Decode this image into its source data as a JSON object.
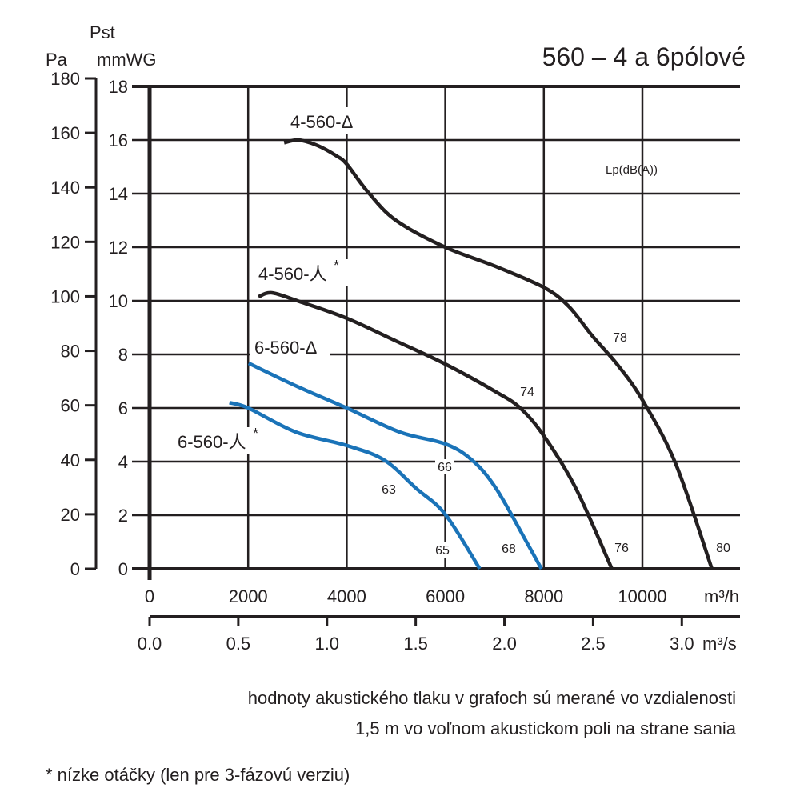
{
  "chart_data": {
    "type": "line",
    "title": "560 – 4 a 6pólové",
    "ylabel_top": "Pst",
    "ylabel_left": "Pa",
    "ylabel_right": "mmWG",
    "xlabel": "m³/h",
    "xlabel2": "m³/s",
    "xlim": [
      0,
      12000
    ],
    "ylim": [
      0,
      18
    ],
    "ylim_pa": [
      0,
      180
    ],
    "grid": true,
    "x_ticks": [
      0,
      2000,
      4000,
      6000,
      8000,
      10000
    ],
    "x_tick_labels": [
      "0",
      "2000",
      "4000",
      "6000",
      "8000",
      "10000"
    ],
    "x2_ticks": [
      0,
      0.5,
      1.0,
      1.5,
      2.0,
      2.5,
      3.0
    ],
    "x2_tick_labels": [
      "0.0",
      "0.5",
      "1.0",
      "1.5",
      "2.0",
      "2.5",
      "3.0"
    ],
    "y_ticks": [
      0,
      2,
      4,
      6,
      8,
      10,
      12,
      14,
      16,
      18
    ],
    "y_tick_labels": [
      "0",
      "2",
      "4",
      "6",
      "8",
      "10",
      "12",
      "14",
      "16",
      "18"
    ],
    "pa_ticks": [
      0,
      20,
      40,
      60,
      80,
      100,
      120,
      140,
      160,
      180
    ],
    "pa_tick_labels": [
      "0",
      "20",
      "40",
      "60",
      "80",
      "100",
      "120",
      "140",
      "160",
      "180"
    ],
    "lp_label": "Lp(dB(A))",
    "series": [
      {
        "name": "4-560-Δ",
        "label_main": "4-560-Δ",
        "label_sup": "",
        "color": "#231f20",
        "x": [
          2730,
          3020,
          3400,
          3800,
          4000,
          4430,
          5000,
          6000,
          7000,
          8000,
          8500,
          8980,
          9500,
          10000,
          10680,
          11410
        ],
        "y": [
          15.9,
          16.0,
          15.8,
          15.4,
          15.1,
          14.06,
          13.0,
          12.0,
          11.3,
          10.5,
          9.8,
          8.7,
          7.6,
          6.3,
          3.9,
          0
        ]
      },
      {
        "name": "4-560-人*",
        "label_main": "4-560-人",
        "label_sup": "*",
        "color": "#231f20",
        "x": [
          2210,
          2480,
          3000,
          4000,
          5000,
          6000,
          7030,
          7520,
          8000,
          8650,
          9380
        ],
        "y": [
          10.15,
          10.3,
          10.0,
          9.35,
          8.5,
          7.64,
          6.6,
          6.0,
          4.96,
          3.0,
          0
        ]
      },
      {
        "name": "6-560-Δ",
        "label_main": "6-560-Δ",
        "label_sup": "",
        "color": "#1a73b8",
        "x": [
          2010,
          3000,
          4000,
          5080,
          6000,
          6540,
          7030,
          7680,
          7950
        ],
        "y": [
          7.67,
          6.8,
          6.0,
          5.1,
          4.66,
          4.06,
          3.0,
          0.9,
          0
        ]
      },
      {
        "name": "6-560-人*",
        "label_main": "6-560-人",
        "label_sup": "*",
        "color": "#1a73b8",
        "x": [
          1620,
          2000,
          2970,
          4000,
          4760,
          5410,
          6000,
          6700
        ],
        "y": [
          6.2,
          6.0,
          5.1,
          4.6,
          4.06,
          3.0,
          2.03,
          0
        ]
      }
    ],
    "annotations": [
      "78",
      "80",
      "74",
      "76",
      "66",
      "68",
      "63",
      "65"
    ]
  },
  "notes": {
    "line1": "hodnoty akustického tlaku v grafoch sú merané vo vzdialenosti",
    "line2": "1,5 m vo voľnom akustickom poli na strane sania",
    "line3": "* nízke otáčky (len pre 3-fázovú verziu)"
  }
}
